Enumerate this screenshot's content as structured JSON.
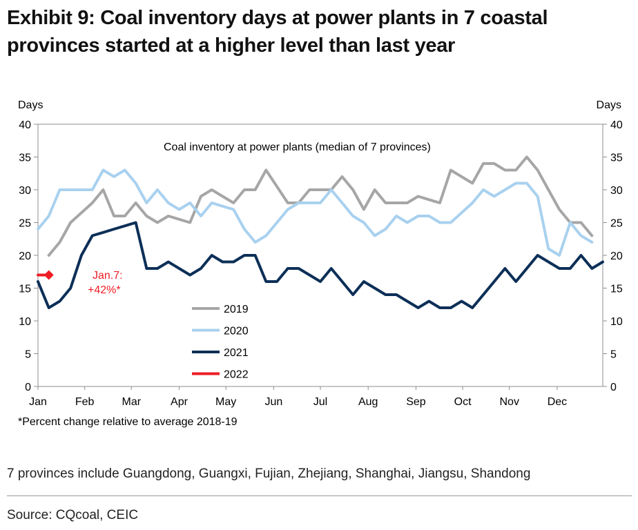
{
  "title_lines": [
    "Exhibit 9: Coal inventory days at power plants in 7 coastal",
    "provinces started at a higher level than last year"
  ],
  "footnote": "*Percent change relative to average 2018-19",
  "provinces_note": "7 provinces include Guangdong, Guangxi, Fujian, Zhejiang, Shanghai, Jiangsu, Shandong",
  "source": "Source: CQcoal, CEIC",
  "chart_data": {
    "type": "line",
    "title": "Coal inventory at power plants (median of 7 provinces)",
    "ylabel_left": "Days",
    "ylabel_right": "Days",
    "ylim": [
      0,
      40
    ],
    "y_ticks": [
      "0",
      "5",
      "10",
      "15",
      "20",
      "25",
      "30",
      "35",
      "40"
    ],
    "xlim": [
      0,
      52
    ],
    "x_ticks": [
      {
        "label": "Jan",
        "x": 0
      },
      {
        "label": "Feb",
        "x": 4.3
      },
      {
        "label": "Mar",
        "x": 8.6
      },
      {
        "label": "Apr",
        "x": 13
      },
      {
        "label": "May",
        "x": 17.3
      },
      {
        "label": "Jun",
        "x": 21.7
      },
      {
        "label": "Jul",
        "x": 26
      },
      {
        "label": "Aug",
        "x": 30.4
      },
      {
        "label": "Sep",
        "x": 34.8
      },
      {
        "label": "Oct",
        "x": 39.1
      },
      {
        "label": "Nov",
        "x": 43.4
      },
      {
        "label": "Dec",
        "x": 47.8
      }
    ],
    "grid": false,
    "series": [
      {
        "name": "2019",
        "color": "#a6a6a6",
        "x_start": 1,
        "values": [
          20,
          22,
          25,
          26.5,
          28,
          30,
          26,
          26,
          28,
          26,
          25,
          26,
          25.5,
          25,
          29,
          30,
          29,
          28,
          30,
          30,
          33,
          30.5,
          28,
          28,
          30,
          30,
          30,
          32,
          30,
          27,
          30,
          28,
          28,
          28,
          29,
          28.5,
          28,
          33,
          32,
          31,
          34,
          34,
          33,
          33,
          35,
          33,
          30,
          27,
          25,
          25,
          23
        ]
      },
      {
        "name": "2020",
        "color": "#a9d1ef",
        "x_start": 0,
        "values": [
          24,
          26,
          30,
          30,
          30,
          30,
          33,
          32,
          33,
          31,
          28,
          30,
          28,
          27,
          28,
          26,
          28,
          27.5,
          27,
          24,
          22,
          23,
          25,
          27,
          28,
          28,
          28,
          30,
          28,
          26,
          25,
          23,
          24,
          26,
          25,
          26,
          26,
          25,
          25,
          26.5,
          28,
          30,
          29,
          30,
          31,
          31,
          29,
          21,
          20,
          25,
          23,
          22
        ]
      },
      {
        "name": "2021",
        "color": "#0c2f57",
        "x_start": 0,
        "values": [
          16,
          12,
          13,
          15,
          20,
          23,
          23.5,
          24,
          24.5,
          25,
          18,
          18,
          19,
          18,
          17,
          18,
          20,
          19,
          19,
          20,
          20,
          16,
          16,
          18,
          18,
          17,
          16,
          18,
          16,
          14,
          16,
          15,
          14,
          14,
          13,
          12,
          13,
          12,
          12,
          13,
          12,
          14,
          16,
          18,
          16,
          18,
          20,
          19,
          18,
          18,
          20,
          18,
          19
        ]
      },
      {
        "name": "2022",
        "color": "#ee1c25",
        "x_start": 0,
        "values": [
          17,
          17
        ]
      }
    ],
    "legend": [
      "2019",
      "2020",
      "2021",
      "2022"
    ],
    "legend_position": "center-left",
    "annotation": {
      "line1": "Jan.7:",
      "line2": "+42%*",
      "color": "#ee1c25"
    }
  }
}
